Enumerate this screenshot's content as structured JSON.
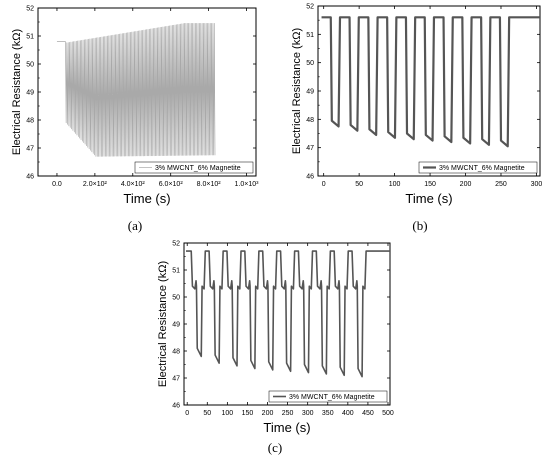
{
  "chart_data": [
    {
      "type": "line",
      "panel_label": "(a)",
      "xlabel": "Time (s)",
      "ylabel": "Electrical Resistance (kΩ)",
      "xlim": [
        -100,
        1050
      ],
      "ylim": [
        46,
        52
      ],
      "x_ticks": [
        0,
        200,
        400,
        600,
        800,
        1000
      ],
      "x_tick_labels": [
        "0.0",
        "2.0×10²",
        "4.0×10²",
        "6.0×10²",
        "8.0×10²",
        "1.0×10³"
      ],
      "y_ticks": [
        46,
        47,
        48,
        49,
        50,
        51,
        52
      ],
      "y_tick_labels": [
        "46",
        "47",
        "48",
        "49",
        "50",
        "51",
        "52"
      ],
      "legend": "top-left inside? no: bottom-right",
      "legend_position": "bottom-right",
      "series": [
        {
          "name": "3% MWCNT_6% Magnetite",
          "color": "#a9a9a9",
          "description": "dense fast oscillation",
          "x_start": 45,
          "x_end": 830,
          "upper_start": 50.75,
          "upper_end": 51.45,
          "lower_start": 47.9,
          "lower_min": 46.7,
          "lower_end": 46.75,
          "initial_flat": [
            [
              0,
              50.8
            ],
            [
              45,
              50.8
            ]
          ],
          "cycles": 110
        }
      ]
    },
    {
      "type": "line",
      "panel_label": "(b)",
      "xlabel": "Time (s)",
      "ylabel": "Electrical Resistance (kΩ)",
      "xlim": [
        -8,
        305
      ],
      "ylim": [
        46,
        52
      ],
      "x_ticks": [
        0,
        50,
        100,
        150,
        200,
        250,
        300
      ],
      "x_tick_labels": [
        "0",
        "50",
        "100",
        "150",
        "200",
        "250",
        "300"
      ],
      "y_ticks": [
        46,
        47,
        48,
        49,
        50,
        51,
        52
      ],
      "y_tick_labels": [
        "46",
        "47",
        "48",
        "49",
        "50",
        "51",
        "52"
      ],
      "legend_position": "bottom-right",
      "series": [
        {
          "name": "3% MWCNT_6% Magnetite",
          "color": "#555555",
          "high": 51.6,
          "lows": [
            47.75,
            47.6,
            47.45,
            47.35,
            47.3,
            47.25,
            47.2,
            47.15,
            47.1,
            47.05
          ],
          "period": 26.5,
          "first_drop": 10,
          "end_value": 51.6
        }
      ]
    },
    {
      "type": "line",
      "panel_label": "(c)",
      "xlabel": "Time (s)",
      "ylabel": "Electrical Resistance (kΩ)",
      "xlim": [
        -8,
        505
      ],
      "ylim": [
        46,
        52
      ],
      "x_ticks": [
        0,
        50,
        100,
        150,
        200,
        250,
        300,
        350,
        400,
        450,
        500
      ],
      "x_tick_labels": [
        "0",
        "50",
        "100",
        "150",
        "200",
        "250",
        "300",
        "350",
        "400",
        "450",
        "500"
      ],
      "y_ticks": [
        46,
        47,
        48,
        49,
        50,
        51,
        52
      ],
      "y_tick_labels": [
        "46",
        "47",
        "48",
        "49",
        "50",
        "51",
        "52"
      ],
      "legend_position": "bottom-right",
      "series": [
        {
          "name": "3% MWCNT_6% Magnetite",
          "color": "#555555",
          "high": 51.7,
          "plateau": 50.4,
          "lows": [
            47.8,
            47.55,
            47.45,
            47.35,
            47.3,
            47.25,
            47.2,
            47.15,
            47.1,
            47.05
          ],
          "period": 44.5,
          "first_drop": 10
        }
      ]
    }
  ]
}
